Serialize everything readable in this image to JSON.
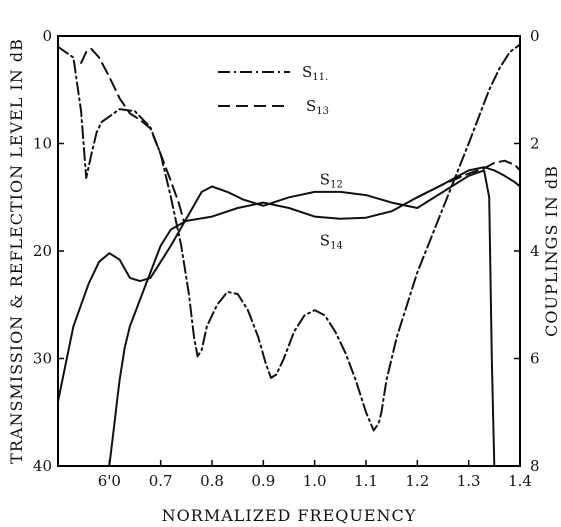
{
  "chart_data": {
    "type": "line",
    "xlabel": "NORMALIZED FREQUENCY",
    "ylabel_left": "TRANSMISSION & REFLECTION LEVEL IN dB",
    "ylabel_right": "COUPLINGS IN dB",
    "xlim": [
      0.5,
      1.4
    ],
    "ylim_left": [
      0,
      40
    ],
    "ylim_right": [
      0,
      8
    ],
    "x_ticks": [
      "6'0",
      "0.7",
      "0.8",
      "0.9",
      "1.0",
      "1.1",
      "1.2",
      "1.3",
      "1.4"
    ],
    "x_tick_values": [
      0.6,
      0.7,
      0.8,
      0.9,
      1.0,
      1.1,
      1.2,
      1.3,
      1.4
    ],
    "y_ticks_left": [
      "0",
      "10",
      "20",
      "30",
      "40"
    ],
    "y_tick_values_left": [
      0,
      10,
      20,
      30,
      40
    ],
    "y_ticks_right": [
      "0",
      "2",
      "4",
      "6",
      "8"
    ],
    "y_tick_values_right": [
      0,
      2,
      4,
      6,
      8
    ],
    "legend": [
      {
        "name": "S",
        "sub": "11.",
        "style": "dash-dot"
      },
      {
        "name": "S",
        "sub": "13",
        "style": "dashed"
      }
    ],
    "annotations": [
      {
        "name": "S",
        "sub": "12",
        "x": 1.01,
        "y_left": 13.8
      },
      {
        "name": "S",
        "sub": "14",
        "x": 1.01,
        "y_left": 19.5
      }
    ],
    "series": [
      {
        "key": "s11",
        "axis": "left",
        "style": "dash-dot",
        "x": [
          0.5,
          0.53,
          0.545,
          0.555,
          0.565,
          0.575,
          0.585,
          0.6,
          0.62,
          0.65,
          0.68,
          0.7,
          0.72,
          0.74,
          0.755,
          0.765,
          0.772,
          0.78,
          0.79,
          0.81,
          0.83,
          0.85,
          0.87,
          0.89,
          0.905,
          0.915,
          0.925,
          0.94,
          0.96,
          0.98,
          1.0,
          1.02,
          1.04,
          1.06,
          1.08,
          1.1,
          1.115,
          1.125,
          1.13,
          1.14,
          1.16,
          1.2,
          1.25,
          1.3,
          1.32,
          1.34,
          1.36,
          1.38,
          1.4
        ],
        "y": [
          1.0,
          2.0,
          7.0,
          13.2,
          11.0,
          9.0,
          8.0,
          7.5,
          6.8,
          7.0,
          8.5,
          11.0,
          15.0,
          19.5,
          24.0,
          28.0,
          29.8,
          29.2,
          27.0,
          25.0,
          23.8,
          24.0,
          25.5,
          28.0,
          30.5,
          31.8,
          31.5,
          30.0,
          27.5,
          26.0,
          25.5,
          26.0,
          27.5,
          29.5,
          32.0,
          35.0,
          36.7,
          36.0,
          35.0,
          32.0,
          28.0,
          22.0,
          16.0,
          10.0,
          7.5,
          5.0,
          3.0,
          1.5,
          0.8
        ]
      },
      {
        "key": "s13",
        "axis": "left",
        "style": "dashed",
        "x": [
          0.545,
          0.555,
          0.565,
          0.58,
          0.6,
          0.62,
          0.64,
          0.66,
          0.68,
          0.7,
          0.72,
          0.735,
          0.745
        ],
        "y": [
          2.5,
          1.5,
          1.2,
          2.0,
          3.8,
          5.8,
          7.2,
          7.8,
          8.6,
          11.0,
          13.5,
          15.5,
          17.2
        ]
      },
      {
        "key": "s13-right",
        "axis": "left",
        "style": "dashed",
        "x": [
          1.2,
          1.25,
          1.3,
          1.33,
          1.35,
          1.37,
          1.39,
          1.4
        ],
        "y": [
          15.0,
          13.8,
          12.8,
          12.3,
          11.8,
          11.6,
          12.0,
          12.5
        ]
      },
      {
        "key": "s12",
        "axis": "left",
        "style": "solid",
        "x": [
          0.5,
          0.53,
          0.56,
          0.58,
          0.6,
          0.62,
          0.64,
          0.66,
          0.68,
          0.7,
          0.72,
          0.75,
          0.78,
          0.8,
          0.83,
          0.86,
          0.9,
          0.95,
          1.0,
          1.05,
          1.1,
          1.15,
          1.2,
          1.25,
          1.3,
          1.33,
          1.34,
          1.345,
          1.35
        ],
        "y": [
          34.0,
          27.0,
          23.0,
          21.0,
          20.2,
          20.8,
          22.5,
          22.8,
          22.5,
          21.0,
          19.5,
          17.0,
          14.5,
          14.0,
          14.5,
          15.2,
          15.8,
          15.0,
          14.5,
          14.5,
          14.8,
          15.5,
          16.0,
          14.5,
          13.0,
          12.5,
          15.0,
          30.0,
          40.0
        ]
      },
      {
        "key": "s14",
        "axis": "left",
        "style": "solid",
        "x": [
          0.6,
          0.605,
          0.61,
          0.615,
          0.62,
          0.63,
          0.64,
          0.66,
          0.68,
          0.7,
          0.72,
          0.75,
          0.8,
          0.85,
          0.9,
          0.95,
          1.0,
          1.05,
          1.1,
          1.15,
          1.2,
          1.25,
          1.3,
          1.33,
          1.35,
          1.37,
          1.39,
          1.4
        ],
        "y": [
          40.0,
          38.0,
          36.0,
          34.0,
          32.0,
          29.0,
          27.0,
          24.5,
          22.0,
          19.5,
          18.0,
          17.2,
          16.8,
          16.0,
          15.5,
          16.0,
          16.8,
          17.0,
          16.9,
          16.3,
          15.0,
          13.8,
          12.5,
          12.2,
          12.5,
          13.0,
          13.6,
          14.0
        ]
      }
    ]
  }
}
